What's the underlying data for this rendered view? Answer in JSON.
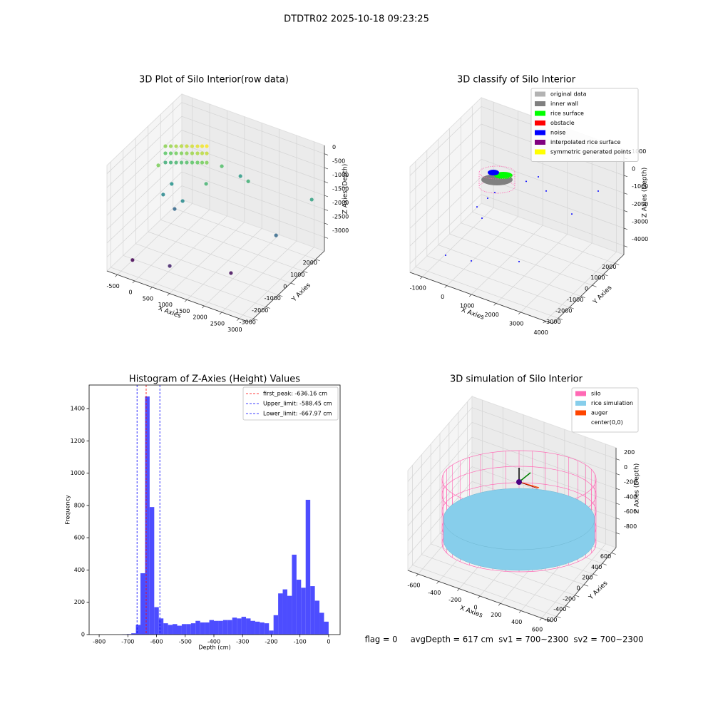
{
  "title": "DTDTR02 2025-10-18 09:23:25",
  "footer": "flag = 0     avgDepth = 617 cm  sv1 = 700~2300  sv2 = 700~2300",
  "chart_data": [
    {
      "type": "scatter3d",
      "title": "3D Plot of Silo Interior(row data)",
      "xlabel": "X Axies",
      "ylabel": "Y Axies",
      "zlabel": "Z Axies (Depth)",
      "xlim": [
        -800,
        3300
      ],
      "ylim": [
        -3300,
        2700
      ],
      "zlim": [
        -3500,
        300
      ],
      "xticks": [
        -500,
        0,
        500,
        1000,
        1500,
        2000,
        2500,
        3000
      ],
      "yticks": [
        -3000,
        -2000,
        -1000,
        0,
        1000,
        2000
      ],
      "zticks": [
        -3000,
        -2500,
        -2000,
        -1500,
        -1000,
        -500,
        0
      ],
      "cmap": "viridis",
      "points": {
        "x": [
          -626,
          -626,
          -626,
          -318,
          -318,
          -318,
          -11,
          -11,
          -11,
          297,
          297,
          297,
          563,
          563,
          563,
          -472,
          -472,
          -472,
          -165,
          -165,
          -165,
          143,
          143,
          143,
          430,
          430,
          430,
          -280,
          790,
          2120,
          3150,
          2770,
          1540,
          760,
          70,
          300,
          -260,
          -230,
          780,
          1100,
          -400
        ],
        "y": [
          900,
          900,
          900,
          900,
          900,
          900,
          900,
          900,
          900,
          900,
          900,
          900,
          900,
          900,
          900,
          900,
          900,
          900,
          900,
          900,
          900,
          900,
          900,
          900,
          900,
          900,
          900,
          -2700,
          -2700,
          -1500,
          2100,
          300,
          1500,
          300,
          -300,
          -300,
          -300,
          300,
          1500,
          2100,
          -300
        ],
        "z": [
          -726,
          -981,
          -1314,
          -588,
          -843,
          -1178,
          -449,
          -706,
          -1038,
          -311,
          -566,
          -900,
          -190,
          -449,
          -783,
          -657,
          -912,
          -1246,
          -518,
          -775,
          -1108,
          -380,
          -636,
          -969,
          -250,
          -507,
          -841,
          -3130,
          -2860,
          -3030,
          -1460,
          -2150,
          -1270,
          -1200,
          -2160,
          -1770,
          -1790,
          -1650,
          -1070,
          -1540,
          -800
        ]
      }
    },
    {
      "type": "scatter3d",
      "title": "3D classify of Silo Interior",
      "xlabel": "X Axies",
      "ylabel": "Y Axies",
      "zlabel": "Z Axies (Depth)",
      "xlim": [
        -1500,
        4300
      ],
      "ylim": [
        -3500,
        2800
      ],
      "zlim": [
        -4500,
        1500
      ],
      "xticks": [
        -1000,
        0,
        1000,
        2000,
        3000,
        4000
      ],
      "yticks": [
        -3000,
        -2000,
        -1000,
        0,
        1000,
        2000
      ],
      "zticks": [
        -4000,
        -3000,
        -2000,
        -1000,
        0,
        1000
      ],
      "series": [
        {
          "name": "original data",
          "color": "#b3b3b3"
        },
        {
          "name": "inner wall",
          "color": "#808080"
        },
        {
          "name": "rice surface",
          "color": "#00ff00"
        },
        {
          "name": "obstacle",
          "color": "#ff0000"
        },
        {
          "name": "noise",
          "color": "#0000ff",
          "x": [
            -340,
            704,
            2067,
            -21,
            -224,
            -79,
            211,
            907,
            1719,
            1400,
            3546,
            3053
          ],
          "y": [
            -2870,
            -2870,
            -1610,
            -350,
            -350,
            280,
            280,
            1540,
            1540,
            1540,
            2170,
            910
          ],
          "z": [
            -3336,
            -3132,
            -3270,
            -2640,
            -2100,
            -1930,
            -1460,
            -1260,
            -1400,
            -756,
            -880,
            -1640
          ]
        },
        {
          "name": "interpolated rice surface",
          "color": "#800080"
        },
        {
          "name": "symmetric generated points",
          "color": "#ffff00"
        }
      ]
    },
    {
      "type": "histogram",
      "title": "Histogram of Z-Axies (Height) Values",
      "xlabel": "Depth (cm)",
      "ylabel": "Frequency",
      "color": "#4d4dff",
      "xlim": [
        -835,
        40
      ],
      "ylim": [
        0,
        1546
      ],
      "xticks": [
        -800,
        -700,
        -600,
        -500,
        -400,
        -300,
        -200,
        -100,
        0
      ],
      "yticks": [
        0,
        200,
        400,
        600,
        800,
        1000,
        1200,
        1400
      ],
      "bins": [
        -720,
        -704,
        -688,
        -672,
        -656,
        -640,
        -624,
        -608,
        -592,
        -576,
        -560,
        -544,
        -528,
        -512,
        -496,
        -480,
        -464,
        -448,
        -432,
        -416,
        -400,
        -384,
        -368,
        -352,
        -336,
        -320,
        -304,
        -288,
        -272,
        -256,
        -240,
        -224,
        -208,
        -192,
        -176,
        -160,
        -144,
        -128,
        -112,
        -96,
        -80,
        -64,
        -48,
        -32,
        -16,
        0
      ],
      "counts": [
        2,
        3,
        8,
        60,
        380,
        1475,
        790,
        170,
        100,
        70,
        60,
        65,
        55,
        65,
        65,
        70,
        85,
        75,
        75,
        90,
        85,
        85,
        90,
        90,
        105,
        100,
        110,
        100,
        85,
        80,
        75,
        70,
        25,
        120,
        255,
        280,
        240,
        495,
        340,
        290,
        835,
        300,
        210,
        135,
        80
      ],
      "lines": [
        {
          "name": "first_peak: -636.16 cm",
          "value": -636.16,
          "color": "#ff0000"
        },
        {
          "name": "Upper_limit: -588.45 cm",
          "value": -588.45,
          "color": "#0000ff"
        },
        {
          "name": "Lower_limit: -667.97 cm",
          "value": -667.97,
          "color": "#0000ff"
        }
      ],
      "legend": "upper right"
    },
    {
      "type": "surface3d",
      "title": "3D simulation of Silo Interior",
      "xlabel": "X Axies",
      "ylabel": "Y Axies",
      "zlabel": "Z Axies (Depth)",
      "xlim": [
        -700,
        700
      ],
      "ylim": [
        -700,
        700
      ],
      "zlim": [
        -1000,
        350
      ],
      "xticks": [
        -600,
        -400,
        -200,
        0,
        200,
        400,
        600
      ],
      "yticks": [
        -600,
        -400,
        -200,
        0,
        200,
        400,
        600
      ],
      "zticks": [
        -800,
        -600,
        -400,
        -200,
        0,
        200
      ],
      "series": [
        {
          "name": "silo",
          "color": "#ff69b4"
        },
        {
          "name": "rice simulation",
          "color": "#87ceeb"
        },
        {
          "name": "auger",
          "color": "#ff4500"
        },
        {
          "name": "center(0,0)",
          "color": "#ffffff"
        }
      ]
    }
  ]
}
